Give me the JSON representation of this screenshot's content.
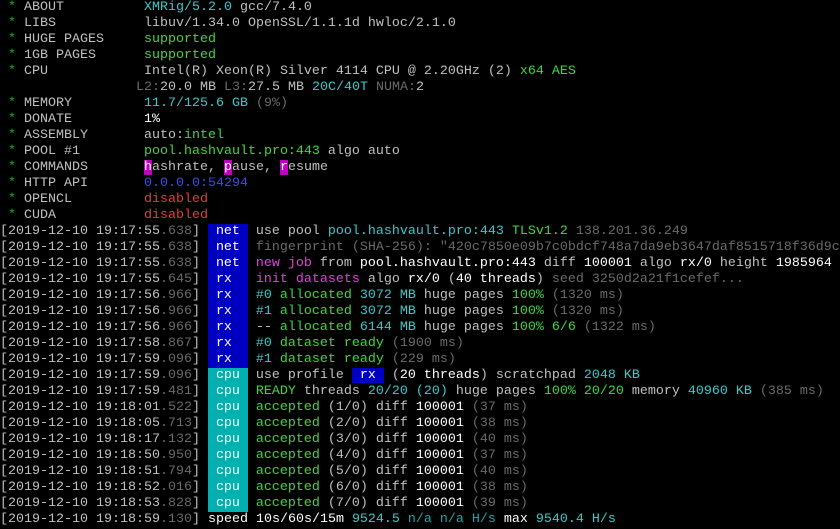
{
  "colors": {
    "tag_net": "#0000c0",
    "tag_rx": "#0000c0",
    "tag_cpu": "#00b0b0",
    "green": "#3fd83f",
    "cyan": "#3ec8c8",
    "red": "#e03c3c",
    "magenta": "#e040e0",
    "blue": "#3b4fe0"
  },
  "header": [
    {
      "label": "ABOUT",
      "segs": [
        [
          "XMRig/5.2.0",
          "c"
        ],
        [
          " gcc/7.4.0",
          "w"
        ]
      ]
    },
    {
      "label": "LIBS",
      "segs": [
        [
          "libuv/1.34.0 OpenSSL/1.1.1d hwloc/2.1.0",
          "w"
        ]
      ]
    },
    {
      "label": "HUGE PAGES",
      "segs": [
        [
          "supported",
          "g"
        ]
      ]
    },
    {
      "label": "1GB PAGES",
      "segs": [
        [
          "supported",
          "g"
        ]
      ]
    },
    {
      "label": "CPU",
      "segs": [
        [
          "Intel(R) Xeon(R) Silver 4114 CPU @ 2.20GHz (2) ",
          "w"
        ],
        [
          "x64 AES",
          "g"
        ]
      ]
    },
    {
      "label": "",
      "nostar": true,
      "segs": [
        [
          "L2:",
          "d"
        ],
        [
          "20.0 MB ",
          "w"
        ],
        [
          "L3:",
          "d"
        ],
        [
          "27.5 MB ",
          "w"
        ],
        [
          "20C/40T ",
          "c"
        ],
        [
          "NUMA:",
          "d"
        ],
        [
          "2",
          "w"
        ]
      ]
    },
    {
      "label": "MEMORY",
      "segs": [
        [
          "11.7/125.6 GB",
          "c"
        ],
        [
          " (9%)",
          "d"
        ]
      ]
    },
    {
      "label": "DONATE",
      "segs": [
        [
          "1%",
          "W"
        ]
      ]
    },
    {
      "label": "ASSEMBLY",
      "segs": [
        [
          "auto:",
          "w"
        ],
        [
          "intel",
          "g"
        ]
      ]
    },
    {
      "label": "POOL #1",
      "segs": [
        [
          "pool.hashvault.pro:443",
          "g"
        ],
        [
          " algo auto",
          "w"
        ]
      ]
    },
    {
      "label": "COMMANDS",
      "segs": [
        [
          "h",
          "mb"
        ],
        [
          "ashrate, ",
          "w"
        ],
        [
          "p",
          "mb"
        ],
        [
          "ause, ",
          "w"
        ],
        [
          "r",
          "mb"
        ],
        [
          "esume",
          "w"
        ]
      ]
    },
    {
      "label": "HTTP API",
      "segs": [
        [
          "0.0.0.0:54294",
          "b"
        ]
      ]
    },
    {
      "label": "OPENCL",
      "segs": [
        [
          "disabled",
          "r"
        ]
      ]
    },
    {
      "label": "CUDA",
      "segs": [
        [
          "disabled",
          "r"
        ]
      ]
    }
  ],
  "log": [
    {
      "time": "[2019-12-10 19:17:55",
      "ms": ".638",
      "tag": "net",
      "segs": [
        [
          "use pool ",
          "w"
        ],
        [
          "pool.hashvault.pro:443 ",
          "c"
        ],
        [
          "TLSv1.2 ",
          "g"
        ],
        [
          "138.201.36.249",
          "d"
        ]
      ]
    },
    {
      "time": "[2019-12-10 19:17:55",
      "ms": ".638",
      "tag": "net",
      "segs": [
        [
          "fingerprint (SHA-256): \"420c7850e09b7c0bdcf748a7da9eb3647daf8515718f36d9c",
          "d"
        ]
      ]
    },
    {
      "time": "[2019-12-10 19:17:55",
      "ms": ".638",
      "tag": "net",
      "segs": [
        [
          "new job",
          "m"
        ],
        [
          " from ",
          "w"
        ],
        [
          "pool.hashvault.pro:443",
          "W"
        ],
        [
          " diff ",
          "w"
        ],
        [
          "100001",
          "W"
        ],
        [
          " algo ",
          "w"
        ],
        [
          "rx/0",
          "W"
        ],
        [
          " height ",
          "w"
        ],
        [
          "1985964",
          "W"
        ]
      ]
    },
    {
      "time": "[2019-12-10 19:17:55",
      "ms": ".645",
      "tag": "rx",
      "segs": [
        [
          "init datasets",
          "m"
        ],
        [
          " algo ",
          "w"
        ],
        [
          "rx/0",
          "W"
        ],
        [
          " (",
          "w"
        ],
        [
          "40 threads",
          "W"
        ],
        [
          ") ",
          "w"
        ],
        [
          "seed 3250d2a21f1cefef...",
          "d"
        ]
      ]
    },
    {
      "time": "[2019-12-10 19:17:56",
      "ms": ".966",
      "tag": "rx",
      "segs": [
        [
          "#0",
          "c"
        ],
        [
          " allocated ",
          "g"
        ],
        [
          "3072 MB",
          "c"
        ],
        [
          " huge pages ",
          "w"
        ],
        [
          "100%",
          "g"
        ],
        [
          " (1320 ms)",
          "d"
        ]
      ]
    },
    {
      "time": "[2019-12-10 19:17:56",
      "ms": ".966",
      "tag": "rx",
      "segs": [
        [
          "#1",
          "c"
        ],
        [
          " allocated ",
          "g"
        ],
        [
          "3072 MB",
          "c"
        ],
        [
          " huge pages ",
          "w"
        ],
        [
          "100%",
          "g"
        ],
        [
          " (1320 ms)",
          "d"
        ]
      ]
    },
    {
      "time": "[2019-12-10 19:17:56",
      "ms": ".966",
      "tag": "rx",
      "segs": [
        [
          "--",
          "w"
        ],
        [
          " allocated ",
          "g"
        ],
        [
          "6144 MB",
          "c"
        ],
        [
          " huge pages ",
          "w"
        ],
        [
          "100% 6/6",
          "g"
        ],
        [
          " (1322 ms)",
          "d"
        ]
      ]
    },
    {
      "time": "[2019-12-10 19:17:58",
      "ms": ".867",
      "tag": "rx",
      "segs": [
        [
          "#0",
          "c"
        ],
        [
          " dataset ready",
          "g"
        ],
        [
          " (1900 ms)",
          "d"
        ]
      ]
    },
    {
      "time": "[2019-12-10 19:17:59",
      "ms": ".096",
      "tag": "rx",
      "segs": [
        [
          "#1",
          "c"
        ],
        [
          " dataset ready",
          "g"
        ],
        [
          " (229 ms)",
          "d"
        ]
      ]
    },
    {
      "time": "[2019-12-10 19:17:59",
      "ms": ".096",
      "tag": "cpu",
      "segs": [
        [
          "use profile ",
          "w"
        ],
        [
          " rx ",
          "bt"
        ],
        [
          " (",
          "w"
        ],
        [
          "20 threads",
          "W"
        ],
        [
          ") scratchpad ",
          "w"
        ],
        [
          "2048 KB",
          "c"
        ]
      ]
    },
    {
      "time": "[2019-12-10 19:17:59",
      "ms": ".481",
      "tag": "cpu",
      "segs": [
        [
          "READY",
          "g"
        ],
        [
          " threads ",
          "w"
        ],
        [
          "20/20",
          "c"
        ],
        [
          " (20)",
          "c"
        ],
        [
          " huge pages ",
          "w"
        ],
        [
          "100% 20/20",
          "g"
        ],
        [
          " memory ",
          "w"
        ],
        [
          "40960 KB",
          "c"
        ],
        [
          " (385 ms)",
          "d"
        ]
      ]
    },
    {
      "time": "[2019-12-10 19:18:01",
      "ms": ".522",
      "tag": "cpu",
      "segs": [
        [
          "accepted",
          "g"
        ],
        [
          " (1/0) diff ",
          "w"
        ],
        [
          "100001",
          "W"
        ],
        [
          " (37 ms)",
          "d"
        ]
      ]
    },
    {
      "time": "[2019-12-10 19:18:05",
      "ms": ".713",
      "tag": "cpu",
      "segs": [
        [
          "accepted",
          "g"
        ],
        [
          " (2/0) diff ",
          "w"
        ],
        [
          "100001",
          "W"
        ],
        [
          " (38 ms)",
          "d"
        ]
      ]
    },
    {
      "time": "[2019-12-10 19:18:17",
      "ms": ".132",
      "tag": "cpu",
      "segs": [
        [
          "accepted",
          "g"
        ],
        [
          " (3/0) diff ",
          "w"
        ],
        [
          "100001",
          "W"
        ],
        [
          " (40 ms)",
          "d"
        ]
      ]
    },
    {
      "time": "[2019-12-10 19:18:50",
      "ms": ".950",
      "tag": "cpu",
      "segs": [
        [
          "accepted",
          "g"
        ],
        [
          " (4/0) diff ",
          "w"
        ],
        [
          "100001",
          "W"
        ],
        [
          " (37 ms)",
          "d"
        ]
      ]
    },
    {
      "time": "[2019-12-10 19:18:51",
      "ms": ".794",
      "tag": "cpu",
      "segs": [
        [
          "accepted",
          "g"
        ],
        [
          " (5/0) diff ",
          "w"
        ],
        [
          "100001",
          "W"
        ],
        [
          " (40 ms)",
          "d"
        ]
      ]
    },
    {
      "time": "[2019-12-10 19:18:52",
      "ms": ".016",
      "tag": "cpu",
      "segs": [
        [
          "accepted",
          "g"
        ],
        [
          " (6/0) diff ",
          "w"
        ],
        [
          "100001",
          "W"
        ],
        [
          " (38 ms)",
          "d"
        ]
      ]
    },
    {
      "time": "[2019-12-10 19:18:53",
      "ms": ".828",
      "tag": "cpu",
      "segs": [
        [
          "accepted",
          "g"
        ],
        [
          " (7/0) diff ",
          "w"
        ],
        [
          "100001",
          "W"
        ],
        [
          " (39 ms)",
          "d"
        ]
      ]
    },
    {
      "time": "[2019-12-10 19:18:59",
      "ms": ".130",
      "tag": "",
      "segs": [
        [
          "speed 10s/60s/15m ",
          "W"
        ],
        [
          "9524.5",
          "c"
        ],
        [
          " n/a n/a H/s",
          "cd"
        ],
        [
          " max ",
          "W"
        ],
        [
          "9540.4 H/s",
          "c"
        ]
      ]
    }
  ],
  "star": "*",
  "close_bracket": "]"
}
